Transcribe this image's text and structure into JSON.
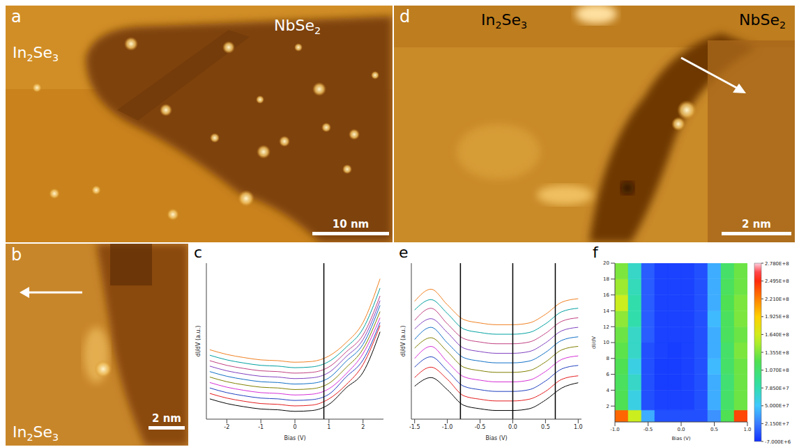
{
  "images": {
    "a": {
      "panel_label": "a",
      "labels": [
        "In2Se3",
        "NbSe2"
      ],
      "scale_bar": "10 nm"
    },
    "b": {
      "panel_label": "b",
      "labels": [
        "In2Se3"
      ],
      "scale_bar": "2 nm"
    },
    "d": {
      "panel_label": "d",
      "labels": [
        "In2Se3",
        "NbSe2"
      ],
      "scale_bar": "2 nm"
    }
  },
  "chart_data": [
    {
      "panel_label": "c",
      "type": "line",
      "x_label": "Bias (V)",
      "y_label": "dI/dV (a.u.)",
      "xlim": [
        -2.6,
        2.6
      ],
      "xticks": [
        -2,
        -1,
        0,
        1,
        2
      ],
      "ylim": [
        0,
        10
      ],
      "tick_labels": "x",
      "reference_lines": [
        0.85
      ],
      "x": [
        -2.5,
        -2,
        -1.5,
        -1,
        -0.5,
        0,
        0.5,
        1,
        1.5,
        2,
        2.5
      ],
      "series": [
        {
          "color": "#000000",
          "values": [
            1.3,
            1.0,
            0.8,
            0.65,
            0.6,
            0.5,
            0.55,
            0.95,
            2.0,
            3.0,
            5.6
          ]
        },
        {
          "color": "#e41a1c",
          "values": [
            1.65,
            1.35,
            1.15,
            1.0,
            0.95,
            0.85,
            0.9,
            1.3,
            2.2,
            3.5,
            6.0
          ]
        },
        {
          "color": "#1f3fbf",
          "values": [
            2.0,
            1.7,
            1.5,
            1.35,
            1.3,
            1.2,
            1.25,
            1.6,
            2.7,
            3.8,
            6.2
          ]
        },
        {
          "color": "#d62fd6",
          "values": [
            2.35,
            2.05,
            1.85,
            1.7,
            1.65,
            1.55,
            1.6,
            1.95,
            2.9,
            4.2,
            6.5
          ]
        },
        {
          "color": "#7f7f00",
          "values": [
            2.7,
            2.4,
            2.2,
            2.05,
            2.0,
            1.9,
            1.95,
            2.3,
            3.3,
            4.5,
            6.9
          ]
        },
        {
          "color": "#0f6fc6",
          "values": [
            3.05,
            2.75,
            2.55,
            2.4,
            2.35,
            2.25,
            2.3,
            2.65,
            3.7,
            4.8,
            7.3
          ]
        },
        {
          "color": "#8040c0",
          "values": [
            3.4,
            3.1,
            2.9,
            2.75,
            2.7,
            2.6,
            2.65,
            3.0,
            4.0,
            5.1,
            7.6
          ]
        },
        {
          "color": "#c04080",
          "values": [
            3.75,
            3.45,
            3.25,
            3.1,
            3.05,
            2.95,
            3.0,
            3.35,
            4.3,
            5.4,
            7.9
          ]
        },
        {
          "color": "#00a0a0",
          "values": [
            4.1,
            3.8,
            3.6,
            3.45,
            3.4,
            3.3,
            3.35,
            3.7,
            4.6,
            5.8,
            8.4
          ]
        },
        {
          "color": "#f08020",
          "values": [
            4.45,
            4.15,
            3.95,
            3.8,
            3.75,
            3.65,
            3.7,
            4.05,
            4.9,
            6.2,
            9.0
          ]
        }
      ]
    },
    {
      "panel_label": "e",
      "type": "line",
      "x_label": "Bias (V)",
      "y_label": "dI/dV (a.u.)",
      "xlim": [
        -1.55,
        1.05
      ],
      "xticks": [
        {
          "value": -1.5,
          "label": "-1.5"
        },
        {
          "value": -1,
          "label": "-1.0"
        },
        {
          "value": -0.5,
          "label": "-0.5"
        },
        {
          "value": 0,
          "label": "0.0"
        },
        {
          "value": 0.5,
          "label": "0.5"
        },
        {
          "value": 1,
          "label": "1.0"
        }
      ],
      "ylim": [
        0,
        9
      ],
      "tick_labels": "x",
      "reference_lines": [
        -0.8,
        0.0,
        0.65
      ],
      "x": [
        -1.5,
        -1.25,
        -1,
        -0.75,
        -0.5,
        -0.25,
        0,
        0.25,
        0.5,
        0.75,
        1.0
      ],
      "series": [
        {
          "color": "#000000",
          "values": [
            1.9,
            2.4,
            1.7,
            0.8,
            0.6,
            0.5,
            0.5,
            0.6,
            1.1,
            1.8,
            2.1
          ]
        },
        {
          "color": "#e41a1c",
          "values": [
            2.4,
            3.0,
            2.3,
            1.35,
            1.15,
            1.05,
            1.05,
            1.15,
            1.6,
            2.3,
            2.5
          ]
        },
        {
          "color": "#1f3fbf",
          "values": [
            3.0,
            3.6,
            2.8,
            1.9,
            1.7,
            1.6,
            1.6,
            1.7,
            2.2,
            2.9,
            3.1
          ]
        },
        {
          "color": "#d62fd6",
          "values": [
            3.5,
            4.2,
            3.3,
            2.45,
            2.25,
            2.15,
            2.15,
            2.25,
            2.75,
            3.45,
            3.65
          ]
        },
        {
          "color": "#7f7f00",
          "values": [
            4.1,
            4.7,
            3.9,
            3.0,
            2.8,
            2.7,
            2.7,
            2.8,
            3.3,
            4.0,
            4.2
          ]
        },
        {
          "color": "#0f6fc6",
          "values": [
            4.6,
            5.3,
            4.4,
            3.55,
            3.35,
            3.25,
            3.25,
            3.35,
            3.85,
            4.55,
            4.75
          ]
        },
        {
          "color": "#8040c0",
          "values": [
            5.2,
            5.8,
            5.0,
            4.1,
            3.9,
            3.8,
            3.8,
            3.9,
            4.4,
            5.1,
            5.3
          ]
        },
        {
          "color": "#c04080",
          "values": [
            5.7,
            6.4,
            5.5,
            4.65,
            4.45,
            4.35,
            4.35,
            4.45,
            4.95,
            5.65,
            5.85
          ]
        },
        {
          "color": "#00a0a0",
          "values": [
            6.3,
            6.9,
            6.1,
            5.2,
            5.0,
            4.9,
            4.9,
            5.0,
            5.5,
            6.2,
            6.4
          ]
        },
        {
          "color": "#f08020",
          "values": [
            6.8,
            7.5,
            6.6,
            5.75,
            5.55,
            5.45,
            5.45,
            5.55,
            6.05,
            6.75,
            6.95
          ]
        }
      ]
    },
    {
      "panel_label": "f",
      "type": "heatmap",
      "x_label": "Bias (V)",
      "y_label": "dI/dV",
      "xlim": [
        -1,
        1
      ],
      "xticks": [
        {
          "value": -1,
          "label": "-1.0"
        },
        {
          "value": -0.5,
          "label": "-0.5"
        },
        {
          "value": 0,
          "label": "0.0"
        },
        {
          "value": 0.5,
          "label": "0.5"
        },
        {
          "value": 1,
          "label": "1.0"
        }
      ],
      "ylim": [
        0,
        20
      ],
      "yticks": [
        2,
        4,
        6,
        8,
        10,
        12,
        14,
        16,
        18,
        20
      ],
      "x_bins": [
        -1,
        -0.8,
        -0.6,
        -0.4,
        -0.2,
        0,
        0.2,
        0.4,
        0.6,
        0.8,
        1.0
      ],
      "y_bins": [
        0,
        1.5,
        4,
        6,
        8,
        10,
        12,
        14,
        16,
        18,
        20
      ],
      "cells": [
        [
          230000000.0,
          160000000.0,
          40000000.0,
          5000000.0,
          5000000.0,
          5000000.0,
          5000000.0,
          30000000.0,
          120000000.0,
          240000000.0
        ],
        [
          120000000.0,
          60000000.0,
          5000000.0,
          0,
          0,
          0,
          5000000.0,
          40000000.0,
          110000000.0,
          130000000.0
        ],
        [
          115000000.0,
          70000000.0,
          5000000.0,
          -2000000.0,
          -2000000.0,
          0,
          5000000.0,
          40000000.0,
          105000000.0,
          130000000.0
        ],
        [
          120000000.0,
          60000000.0,
          5000000.0,
          -2000000.0,
          -2000000.0,
          0,
          5000000.0,
          45000000.0,
          110000000.0,
          130000000.0
        ],
        [
          125000000.0,
          70000000.0,
          5000000.0,
          0,
          -2000000.0,
          0,
          5000000.0,
          40000000.0,
          110000000.0,
          135000000.0
        ],
        [
          130000000.0,
          70000000.0,
          10000000.0,
          0,
          0,
          0,
          5000000.0,
          40000000.0,
          115000000.0,
          130000000.0
        ],
        [
          140000000.0,
          80000000.0,
          10000000.0,
          0,
          0,
          0,
          5000000.0,
          45000000.0,
          115000000.0,
          135000000.0
        ],
        [
          160000000.0,
          80000000.0,
          10000000.0,
          0,
          0,
          0,
          5000000.0,
          40000000.0,
          120000000.0,
          135000000.0
        ],
        [
          145000000.0,
          75000000.0,
          10000000.0,
          0,
          0,
          0,
          5000000.0,
          40000000.0,
          115000000.0,
          130000000.0
        ],
        [
          135000000.0,
          70000000.0,
          10000000.0,
          0,
          0,
          0,
          5000000.0,
          40000000.0,
          110000000.0,
          130000000.0
        ]
      ],
      "colorbar_range": [
        -7000000.0,
        278000000.0
      ],
      "colorbar_ticks": [
        {
          "value": 278000000.0,
          "label": "2.780E+8"
        },
        {
          "value": 249500000.0,
          "label": "2.495E+8"
        },
        {
          "value": 221000000.0,
          "label": "2.210E+8"
        },
        {
          "value": 192500000.0,
          "label": "1.925E+8"
        },
        {
          "value": 164000000.0,
          "label": "1.640E+8"
        },
        {
          "value": 135500000.0,
          "label": "1.355E+8"
        },
        {
          "value": 107000000.0,
          "label": "1.070E+8"
        },
        {
          "value": 78500000.0,
          "label": "7.850E+7"
        },
        {
          "value": 50000000.0,
          "label": "5.000E+7"
        },
        {
          "value": 21500000.0,
          "label": "2.150E+7"
        },
        {
          "value": -7000000.0,
          "label": "-7.000E+6"
        }
      ]
    }
  ]
}
